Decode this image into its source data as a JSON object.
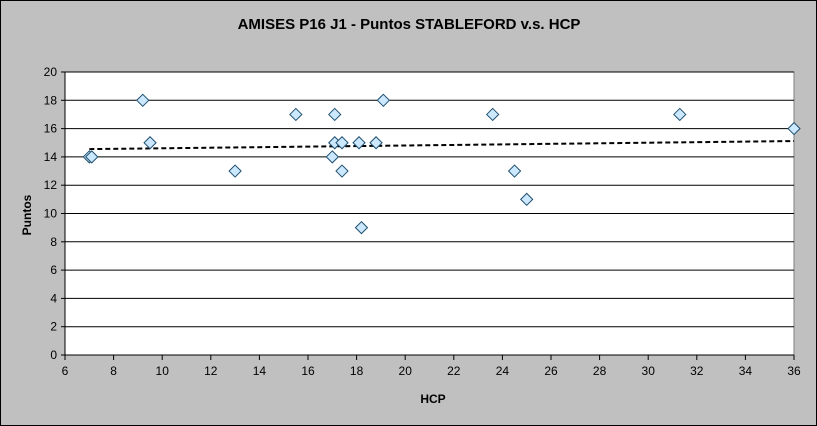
{
  "chart_data": {
    "type": "scatter",
    "title": "AMISES P16 J1 - Puntos STABLEFORD v.s. HCP",
    "xlabel": "HCP",
    "ylabel": "Puntos",
    "xlim": [
      6,
      36
    ],
    "ylim": [
      0,
      20
    ],
    "xticks": [
      6,
      8,
      10,
      12,
      14,
      16,
      18,
      20,
      22,
      24,
      26,
      28,
      30,
      32,
      34,
      36
    ],
    "yticks": [
      0,
      2,
      4,
      6,
      8,
      10,
      12,
      14,
      16,
      18,
      20
    ],
    "grid": "horizontal",
    "legend": "none",
    "marker": "diamond",
    "colors": {
      "chart_area": "#c0c0c0",
      "plot_area": "#ffffff",
      "marker_fill": "#cce8ff",
      "marker_stroke": "#1e4f6e",
      "trendline": "#000000",
      "gridline": "#000000"
    },
    "points": [
      {
        "x": 7.0,
        "y": 14
      },
      {
        "x": 7.1,
        "y": 14
      },
      {
        "x": 9.2,
        "y": 18
      },
      {
        "x": 9.5,
        "y": 15
      },
      {
        "x": 13.0,
        "y": 13
      },
      {
        "x": 15.5,
        "y": 17
      },
      {
        "x": 17.0,
        "y": 14
      },
      {
        "x": 17.1,
        "y": 15
      },
      {
        "x": 17.1,
        "y": 17
      },
      {
        "x": 17.4,
        "y": 13
      },
      {
        "x": 17.4,
        "y": 15
      },
      {
        "x": 18.1,
        "y": 15
      },
      {
        "x": 18.2,
        "y": 9
      },
      {
        "x": 18.8,
        "y": 15
      },
      {
        "x": 19.1,
        "y": 18
      },
      {
        "x": 23.6,
        "y": 17
      },
      {
        "x": 24.5,
        "y": 13
      },
      {
        "x": 25.0,
        "y": 11
      },
      {
        "x": 31.3,
        "y": 17
      },
      {
        "x": 36.0,
        "y": 16
      }
    ],
    "trendline": {
      "type": "linear",
      "style": "dashed",
      "start": {
        "x": 7.0,
        "y": 14.55
      },
      "end": {
        "x": 36.0,
        "y": 15.12
      }
    }
  }
}
